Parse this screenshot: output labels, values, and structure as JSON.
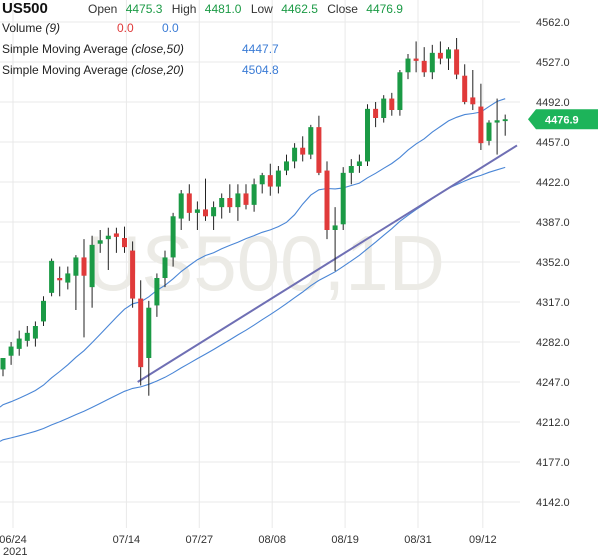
{
  "header": {
    "symbol": "US500",
    "open_label": "Open",
    "open": "4475.3",
    "high_label": "High",
    "high": "4481.0",
    "low_label": "Low",
    "low": "4462.5",
    "close_label": "Close",
    "close": "4476.9",
    "volume_label": "Volume",
    "volume_param": "(9)",
    "volume_val1": "0.0",
    "volume_val2": "0.0",
    "sma50_label": "Simple Moving Average",
    "sma50_param": "(close,50)",
    "sma50_value": "4447.7",
    "sma20_label": "Simple Moving Average",
    "sma20_param": "(close,20)",
    "sma20_value": "4504.8"
  },
  "watermark": "US500,1D",
  "colors": {
    "up": "#1b9a45",
    "down": "#e03a3a",
    "sma": "#4a86d6",
    "trendline": "#6f6fb4",
    "grid": "#e9e9e9",
    "price_badge": "#1db45a",
    "watermark": "#ecebe6"
  },
  "chart_data": {
    "type": "candlestick",
    "title": "US500",
    "timeframe": "1D",
    "ylim": [
      4124,
      4576
    ],
    "y_ticks": [
      "4562.0",
      "4527.0",
      "4492.0",
      "4457.0",
      "4422.0",
      "4387.0",
      "4352.0",
      "4317.0",
      "4282.0",
      "4247.0",
      "4212.0",
      "4177.0",
      "4142.0"
    ],
    "x_ticks": [
      {
        "label": "06/24",
        "index": 0
      },
      {
        "label": "07/14",
        "index": 14
      },
      {
        "label": "07/27",
        "index": 23
      },
      {
        "label": "08/08",
        "index": 32
      },
      {
        "label": "08/19",
        "index": 41
      },
      {
        "label": "08/31",
        "index": 50
      },
      {
        "label": "09/12",
        "index": 58
      }
    ],
    "year_label": "2021",
    "current_price": "4476.9",
    "candles": [
      {
        "o": 4258,
        "h": 4268,
        "l": 4252,
        "c": 4268
      },
      {
        "o": 4270,
        "h": 4282,
        "l": 4262,
        "c": 4278
      },
      {
        "o": 4276,
        "h": 4292,
        "l": 4270,
        "c": 4285
      },
      {
        "o": 4283,
        "h": 4296,
        "l": 4278,
        "c": 4290
      },
      {
        "o": 4285,
        "h": 4300,
        "l": 4278,
        "c": 4296
      },
      {
        "o": 4300,
        "h": 4322,
        "l": 4296,
        "c": 4318
      },
      {
        "o": 4325,
        "h": 4355,
        "l": 4322,
        "c": 4353
      },
      {
        "o": 4338,
        "h": 4348,
        "l": 4322,
        "c": 4336
      },
      {
        "o": 4334,
        "h": 4348,
        "l": 4328,
        "c": 4342
      },
      {
        "o": 4340,
        "h": 4358,
        "l": 4310,
        "c": 4356
      },
      {
        "o": 4356,
        "h": 4372,
        "l": 4286,
        "c": 4340
      },
      {
        "o": 4330,
        "h": 4375,
        "l": 4312,
        "c": 4367
      },
      {
        "o": 4368,
        "h": 4380,
        "l": 4360,
        "c": 4371
      },
      {
        "o": 4372,
        "h": 4382,
        "l": 4345,
        "c": 4375
      },
      {
        "o": 4377,
        "h": 4382,
        "l": 4360,
        "c": 4374
      },
      {
        "o": 4373,
        "h": 4383,
        "l": 4360,
        "c": 4365
      },
      {
        "o": 4362,
        "h": 4370,
        "l": 4312,
        "c": 4320
      },
      {
        "o": 4320,
        "h": 4336,
        "l": 4244,
        "c": 4260
      },
      {
        "o": 4268,
        "h": 4318,
        "l": 4235,
        "c": 4312
      },
      {
        "o": 4314,
        "h": 4342,
        "l": 4304,
        "c": 4338
      },
      {
        "o": 4338,
        "h": 4362,
        "l": 4330,
        "c": 4356
      },
      {
        "o": 4356,
        "h": 4395,
        "l": 4348,
        "c": 4392
      },
      {
        "o": 4390,
        "h": 4415,
        "l": 4380,
        "c": 4412
      },
      {
        "o": 4412,
        "h": 4420,
        "l": 4388,
        "c": 4395
      },
      {
        "o": 4395,
        "h": 4405,
        "l": 4380,
        "c": 4398
      },
      {
        "o": 4398,
        "h": 4425,
        "l": 4388,
        "c": 4392
      },
      {
        "o": 4392,
        "h": 4405,
        "l": 4380,
        "c": 4400
      },
      {
        "o": 4400,
        "h": 4412,
        "l": 4390,
        "c": 4408
      },
      {
        "o": 4408,
        "h": 4420,
        "l": 4395,
        "c": 4400
      },
      {
        "o": 4400,
        "h": 4420,
        "l": 4388,
        "c": 4412
      },
      {
        "o": 4412,
        "h": 4420,
        "l": 4398,
        "c": 4402
      },
      {
        "o": 4402,
        "h": 4425,
        "l": 4396,
        "c": 4420
      },
      {
        "o": 4420,
        "h": 4430,
        "l": 4412,
        "c": 4428
      },
      {
        "o": 4428,
        "h": 4438,
        "l": 4410,
        "c": 4418
      },
      {
        "o": 4418,
        "h": 4436,
        "l": 4412,
        "c": 4432
      },
      {
        "o": 4432,
        "h": 4446,
        "l": 4428,
        "c": 4440
      },
      {
        "o": 4440,
        "h": 4456,
        "l": 4434,
        "c": 4452
      },
      {
        "o": 4452,
        "h": 4462,
        "l": 4440,
        "c": 4446
      },
      {
        "o": 4446,
        "h": 4472,
        "l": 4442,
        "c": 4470
      },
      {
        "o": 4470,
        "h": 4480,
        "l": 4428,
        "c": 4430
      },
      {
        "o": 4432,
        "h": 4440,
        "l": 4372,
        "c": 4380
      },
      {
        "o": 4380,
        "h": 4400,
        "l": 4344,
        "c": 4384
      },
      {
        "o": 4385,
        "h": 4435,
        "l": 4380,
        "c": 4430
      },
      {
        "o": 4430,
        "h": 4442,
        "l": 4420,
        "c": 4436
      },
      {
        "o": 4436,
        "h": 4446,
        "l": 4430,
        "c": 4440
      },
      {
        "o": 4440,
        "h": 4490,
        "l": 4436,
        "c": 4486
      },
      {
        "o": 4486,
        "h": 4492,
        "l": 4470,
        "c": 4478
      },
      {
        "o": 4478,
        "h": 4498,
        "l": 4474,
        "c": 4495
      },
      {
        "o": 4495,
        "h": 4500,
        "l": 4480,
        "c": 4485
      },
      {
        "o": 4485,
        "h": 4520,
        "l": 4480,
        "c": 4518
      },
      {
        "o": 4518,
        "h": 4534,
        "l": 4512,
        "c": 4530
      },
      {
        "o": 4530,
        "h": 4545,
        "l": 4518,
        "c": 4528
      },
      {
        "o": 4528,
        "h": 4540,
        "l": 4514,
        "c": 4518
      },
      {
        "o": 4518,
        "h": 4542,
        "l": 4512,
        "c": 4535
      },
      {
        "o": 4535,
        "h": 4545,
        "l": 4525,
        "c": 4530
      },
      {
        "o": 4530,
        "h": 4540,
        "l": 4520,
        "c": 4538
      },
      {
        "o": 4538,
        "h": 4548,
        "l": 4512,
        "c": 4516
      },
      {
        "o": 4515,
        "h": 4525,
        "l": 4490,
        "c": 4492
      },
      {
        "o": 4496,
        "h": 4520,
        "l": 4485,
        "c": 4490
      },
      {
        "o": 4488,
        "h": 4508,
        "l": 4450,
        "c": 4456
      },
      {
        "o": 4458,
        "h": 4476,
        "l": 4454,
        "c": 4474
      },
      {
        "o": 4474,
        "h": 4495,
        "l": 4446,
        "c": 4476
      },
      {
        "o": 4475.3,
        "h": 4481.0,
        "l": 4462.5,
        "c": 4476.9
      }
    ]
  }
}
